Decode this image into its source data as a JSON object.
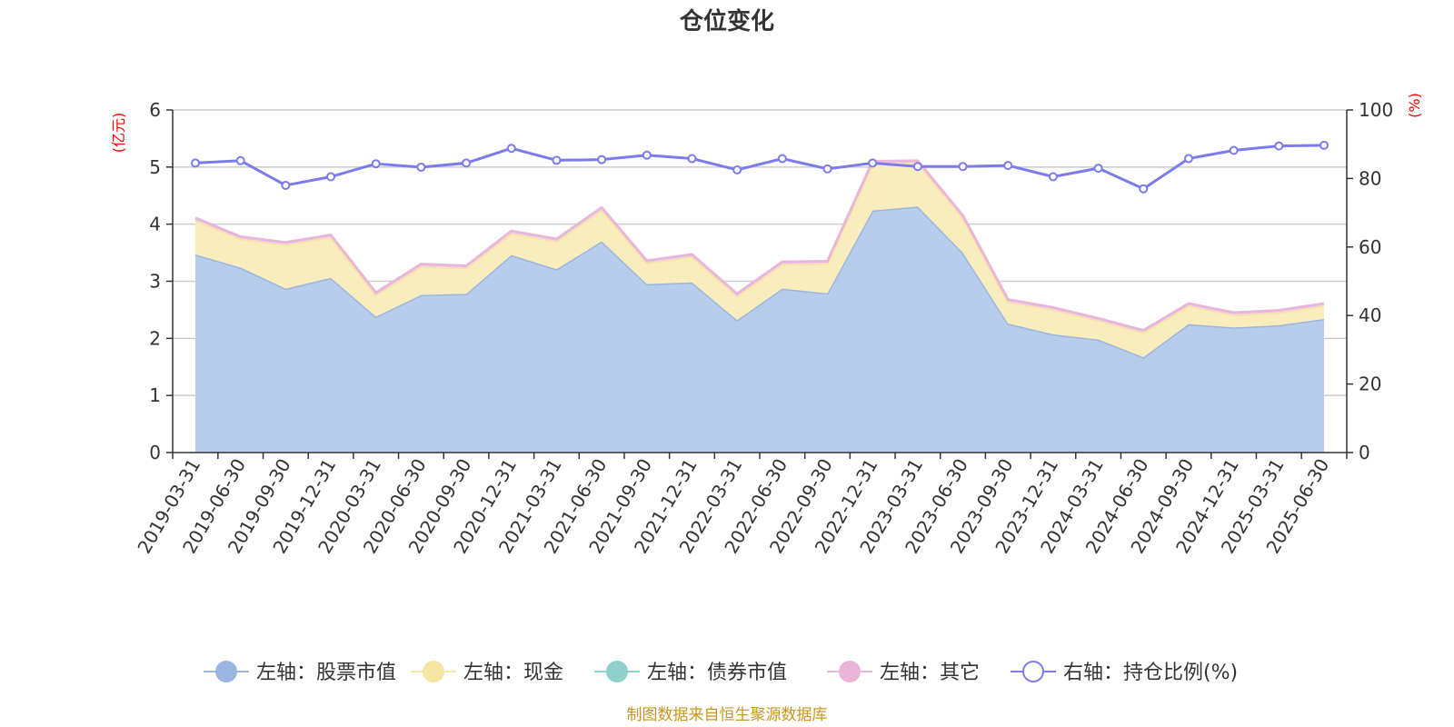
{
  "chart_data": {
    "type": "area",
    "title": "仓位变化",
    "left_unit": "(亿元)",
    "right_unit": "(%)",
    "source": "制图数据来自恒生聚源数据库",
    "left_axis": {
      "min": 0,
      "max": 6,
      "ticks": [
        "0",
        "1",
        "2",
        "3",
        "4",
        "5",
        "6"
      ]
    },
    "right_axis": {
      "min": 0,
      "max": 100,
      "ticks": [
        "0",
        "20",
        "40",
        "60",
        "80",
        "100"
      ]
    },
    "grid": true,
    "legend_position": "bottom",
    "categories": [
      "2019-03-31",
      "2019-06-30",
      "2019-09-30",
      "2019-12-31",
      "2020-03-31",
      "2020-06-30",
      "2020-09-30",
      "2020-12-31",
      "2021-03-31",
      "2021-06-30",
      "2021-09-30",
      "2021-12-31",
      "2022-03-31",
      "2022-06-30",
      "2022-09-30",
      "2022-12-31",
      "2023-03-31",
      "2023-06-30",
      "2023-09-30",
      "2023-12-31",
      "2024-03-31",
      "2024-06-30",
      "2024-09-30",
      "2024-12-31",
      "2025-03-31",
      "2025-06-30"
    ],
    "series": [
      {
        "name": "左轴：股票市值",
        "axis": "left",
        "color": "#9ab6e0",
        "fill": "#b8cdeb",
        "values": [
          3.47,
          3.24,
          2.87,
          3.06,
          2.38,
          2.76,
          2.78,
          3.46,
          3.21,
          3.7,
          2.95,
          2.98,
          2.32,
          2.87,
          2.79,
          4.24,
          4.31,
          3.5,
          2.26,
          2.07,
          1.98,
          1.67,
          2.25,
          2.19,
          2.23,
          2.34
        ]
      },
      {
        "name": "左轴：现金",
        "axis": "left",
        "color": "#f7e5a3",
        "fill": "#f9ecbd",
        "values": [
          0.6,
          0.5,
          0.77,
          0.71,
          0.38,
          0.5,
          0.45,
          0.38,
          0.49,
          0.55,
          0.37,
          0.45,
          0.42,
          0.43,
          0.52,
          0.82,
          0.76,
          0.61,
          0.38,
          0.43,
          0.33,
          0.43,
          0.32,
          0.22,
          0.22,
          0.23
        ]
      },
      {
        "name": "左轴：债券市值",
        "axis": "left",
        "color": "#8fd0cc",
        "fill": "#bfe5e2",
        "values": [
          0,
          0,
          0,
          0,
          0,
          0,
          0,
          0,
          0,
          0,
          0,
          0,
          0,
          0,
          0,
          0,
          0,
          0,
          0,
          0,
          0,
          0,
          0,
          0,
          0,
          0
        ]
      },
      {
        "name": "左轴：其它",
        "axis": "left",
        "color": "#e9b6d9",
        "fill": "#f2d2e8",
        "values": [
          0.04,
          0.04,
          0.04,
          0.04,
          0.04,
          0.04,
          0.04,
          0.04,
          0.04,
          0.04,
          0.04,
          0.04,
          0.04,
          0.04,
          0.04,
          0.04,
          0.04,
          0.04,
          0.04,
          0.04,
          0.04,
          0.04,
          0.04,
          0.04,
          0.04,
          0.04
        ]
      },
      {
        "name": "右轴：持仓比例(%)",
        "axis": "right",
        "color": "#7b7bee",
        "fill": "none",
        "values": [
          84.5,
          85.2,
          78.0,
          80.5,
          84.3,
          83.3,
          84.5,
          88.8,
          85.3,
          85.5,
          86.8,
          85.8,
          82.5,
          85.8,
          82.8,
          84.5,
          83.5,
          83.5,
          83.8,
          80.5,
          83.0,
          77.0,
          85.8,
          88.2,
          89.5,
          89.7
        ]
      }
    ]
  }
}
